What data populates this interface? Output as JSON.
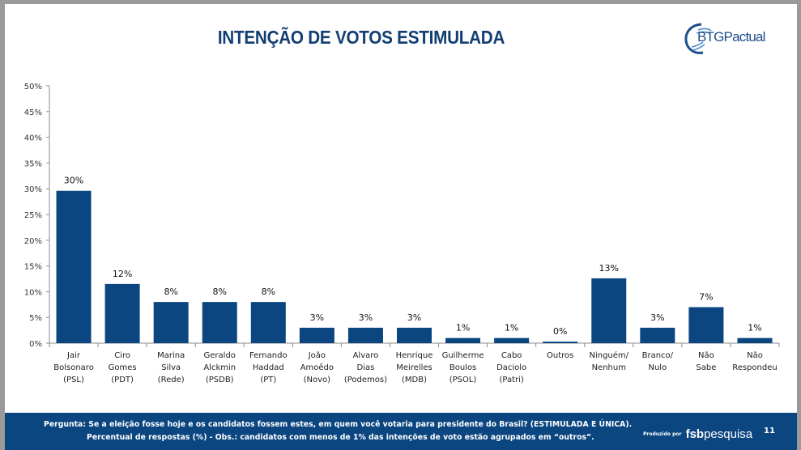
{
  "slide": {
    "title": "INTENÇÃO DE VOTOS ESTIMULADA",
    "logo_text": "BTGPactual",
    "page_number": "11"
  },
  "footer": {
    "question_line": "Pergunta:  Se a eleição fosse hoje e os candidatos fossem estes, em quem você votaria para presidente do Brasil? (ESTIMULADA E ÚNICA).",
    "note_line": "Percentual de respostas (%) - Obs.: candidatos com menos de 1% das intenções de voto estão agrupados em “outros”.",
    "produced_by_label": "Produzido por",
    "producer_bold": "fsb",
    "producer_light": "pesquisa"
  },
  "colors": {
    "bar": "#0b4680",
    "title": "#123f73",
    "footer_bg": "#0b4680",
    "axis": "#8c8c8c"
  },
  "chart_data": {
    "type": "bar",
    "title": "INTENÇÃO DE VOTOS ESTIMULADA",
    "xlabel": "",
    "ylabel": "",
    "ylim": [
      0,
      50
    ],
    "yticks": [
      0,
      5,
      10,
      15,
      20,
      25,
      30,
      35,
      40,
      45,
      50
    ],
    "ytick_labels": [
      "0%",
      "5%",
      "10%",
      "15%",
      "20%",
      "25%",
      "30%",
      "35%",
      "40%",
      "45%",
      "50%"
    ],
    "grid": false,
    "legend": "none",
    "categories": [
      [
        "Jair",
        "Bolsonaro",
        "(PSL)"
      ],
      [
        "Ciro",
        "Gomes",
        "(PDT)"
      ],
      [
        "Marina",
        "Silva",
        "(Rede)"
      ],
      [
        "Geraldo",
        "Alckmin",
        "(PSDB)"
      ],
      [
        "Fernando",
        "Haddad",
        "(PT)"
      ],
      [
        "João",
        "Amoêdo",
        "(Novo)"
      ],
      [
        "Alvaro",
        "Dias",
        "(Podemos)"
      ],
      [
        "Henrique",
        "Meirelles",
        "(MDB)"
      ],
      [
        "Guilherme",
        "Boulos",
        "(PSOL)"
      ],
      [
        "Cabo",
        "Daciolo",
        "(Patri)"
      ],
      [
        "Outros"
      ],
      [
        "Ninguém/",
        "Nenhum"
      ],
      [
        "Branco/",
        "Nulo"
      ],
      [
        "Não",
        "Sabe"
      ],
      [
        "Não",
        "Respondeu"
      ]
    ],
    "values": [
      29.6,
      11.5,
      8.0,
      8.0,
      8.0,
      3.0,
      3.0,
      3.0,
      1.0,
      1.0,
      0.3,
      12.6,
      3.0,
      7.0,
      1.0
    ],
    "data_labels": [
      "30%",
      "12%",
      "8%",
      "8%",
      "8%",
      "3%",
      "3%",
      "3%",
      "1%",
      "1%",
      "0%",
      "13%",
      "3%",
      "7%",
      "1%"
    ]
  }
}
